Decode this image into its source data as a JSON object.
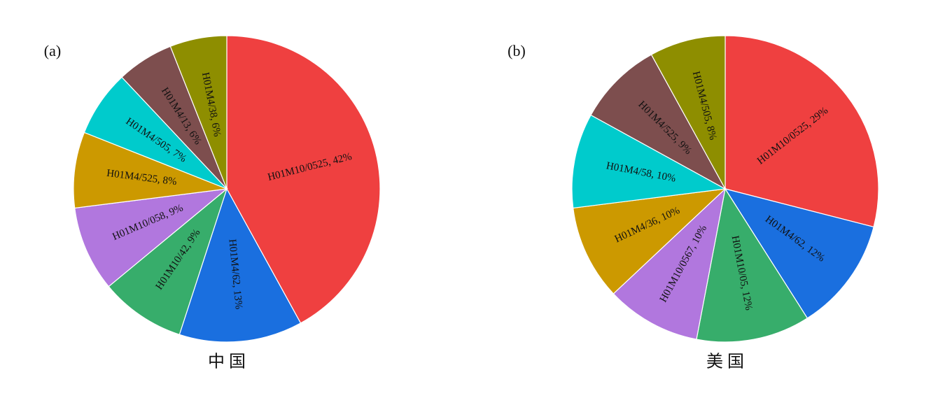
{
  "chart_data": [
    {
      "type": "pie",
      "panel_label": "(a)",
      "title": "中 国",
      "values": [
        42,
        13,
        9,
        9,
        8,
        7,
        6,
        6
      ],
      "value_labels": [
        "H01M10/0525, 42%",
        "H01M4/62, 13%",
        "H01M10/42, 9%",
        "H01M10/058, 9%",
        "H01M4/525, 8%",
        "H01M4/505, 7%",
        "H01M4/13, 6%",
        "H01M4/38, 6%"
      ],
      "colors": [
        "#ef4040",
        "#1a6fdf",
        "#37ad6b",
        "#b177de",
        "#cc9900",
        "#00cbcc",
        "#7d4e4e",
        "#8e8e00"
      ]
    },
    {
      "type": "pie",
      "panel_label": "(b)",
      "title": "美 国",
      "values": [
        29,
        12,
        12,
        10,
        10,
        10,
        9,
        8
      ],
      "value_labels": [
        "H01M10/0525, 29%",
        "H01M4/62, 12%",
        "H01M10/05, 12%",
        "H01M10/0567, 10%",
        "H01M4/36, 10%",
        "H01M4/58, 10%",
        "H01M4/525, 9%",
        "H01M4/505, 8%"
      ],
      "colors": [
        "#ef4040",
        "#1a6fdf",
        "#37ad6b",
        "#b177de",
        "#cc9900",
        "#00cbcc",
        "#7d4e4e",
        "#8e8e00"
      ]
    }
  ]
}
